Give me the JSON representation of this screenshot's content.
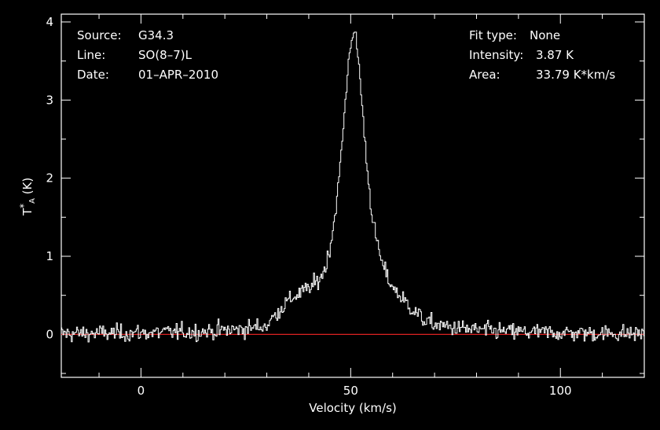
{
  "chart_data": {
    "type": "line",
    "title": "",
    "xlabel": "Velocity (km/s)",
    "ylabel_main": "T",
    "ylabel_sup": "*",
    "ylabel_sub": "A",
    "ylabel_unit": " (K)",
    "xlim": [
      -19,
      120
    ],
    "ylim": [
      -0.55,
      4.1
    ],
    "x_ticks": [
      0,
      50,
      100
    ],
    "x_tick_labels": [
      "0",
      "50",
      "100"
    ],
    "y_ticks": [
      0,
      1,
      2,
      3,
      4
    ],
    "y_tick_labels": [
      "0",
      "1",
      "2",
      "3",
      "4"
    ],
    "grid": false,
    "baseline": {
      "name": "",
      "y": 0,
      "color": "#dd2222"
    },
    "series": [
      {
        "name": "",
        "color": "#ffffff",
        "step": 0.25,
        "profile": {
          "center": 50.7,
          "peak": 3.87,
          "hwhm": 3.6,
          "noise_rms": 0.11
        },
        "shoulder": {
          "from": 30,
          "to": 44,
          "level": 0.25
        },
        "wing": {
          "from": 55,
          "to": 68,
          "level": 0.12
        }
      }
    ],
    "annotations": {
      "left": [
        {
          "key": "Source:",
          "value": "G34.3"
        },
        {
          "key": "Line:",
          "value": "SO(8–7)L"
        },
        {
          "key": "Date:",
          "value": "01–APR–2010"
        }
      ],
      "right": [
        {
          "key": "Fit type:",
          "value": "None"
        },
        {
          "key": "Intensity:",
          "value": "3.87 K"
        },
        {
          "key": "Area:",
          "value": "33.79 K*km/s"
        }
      ]
    }
  }
}
